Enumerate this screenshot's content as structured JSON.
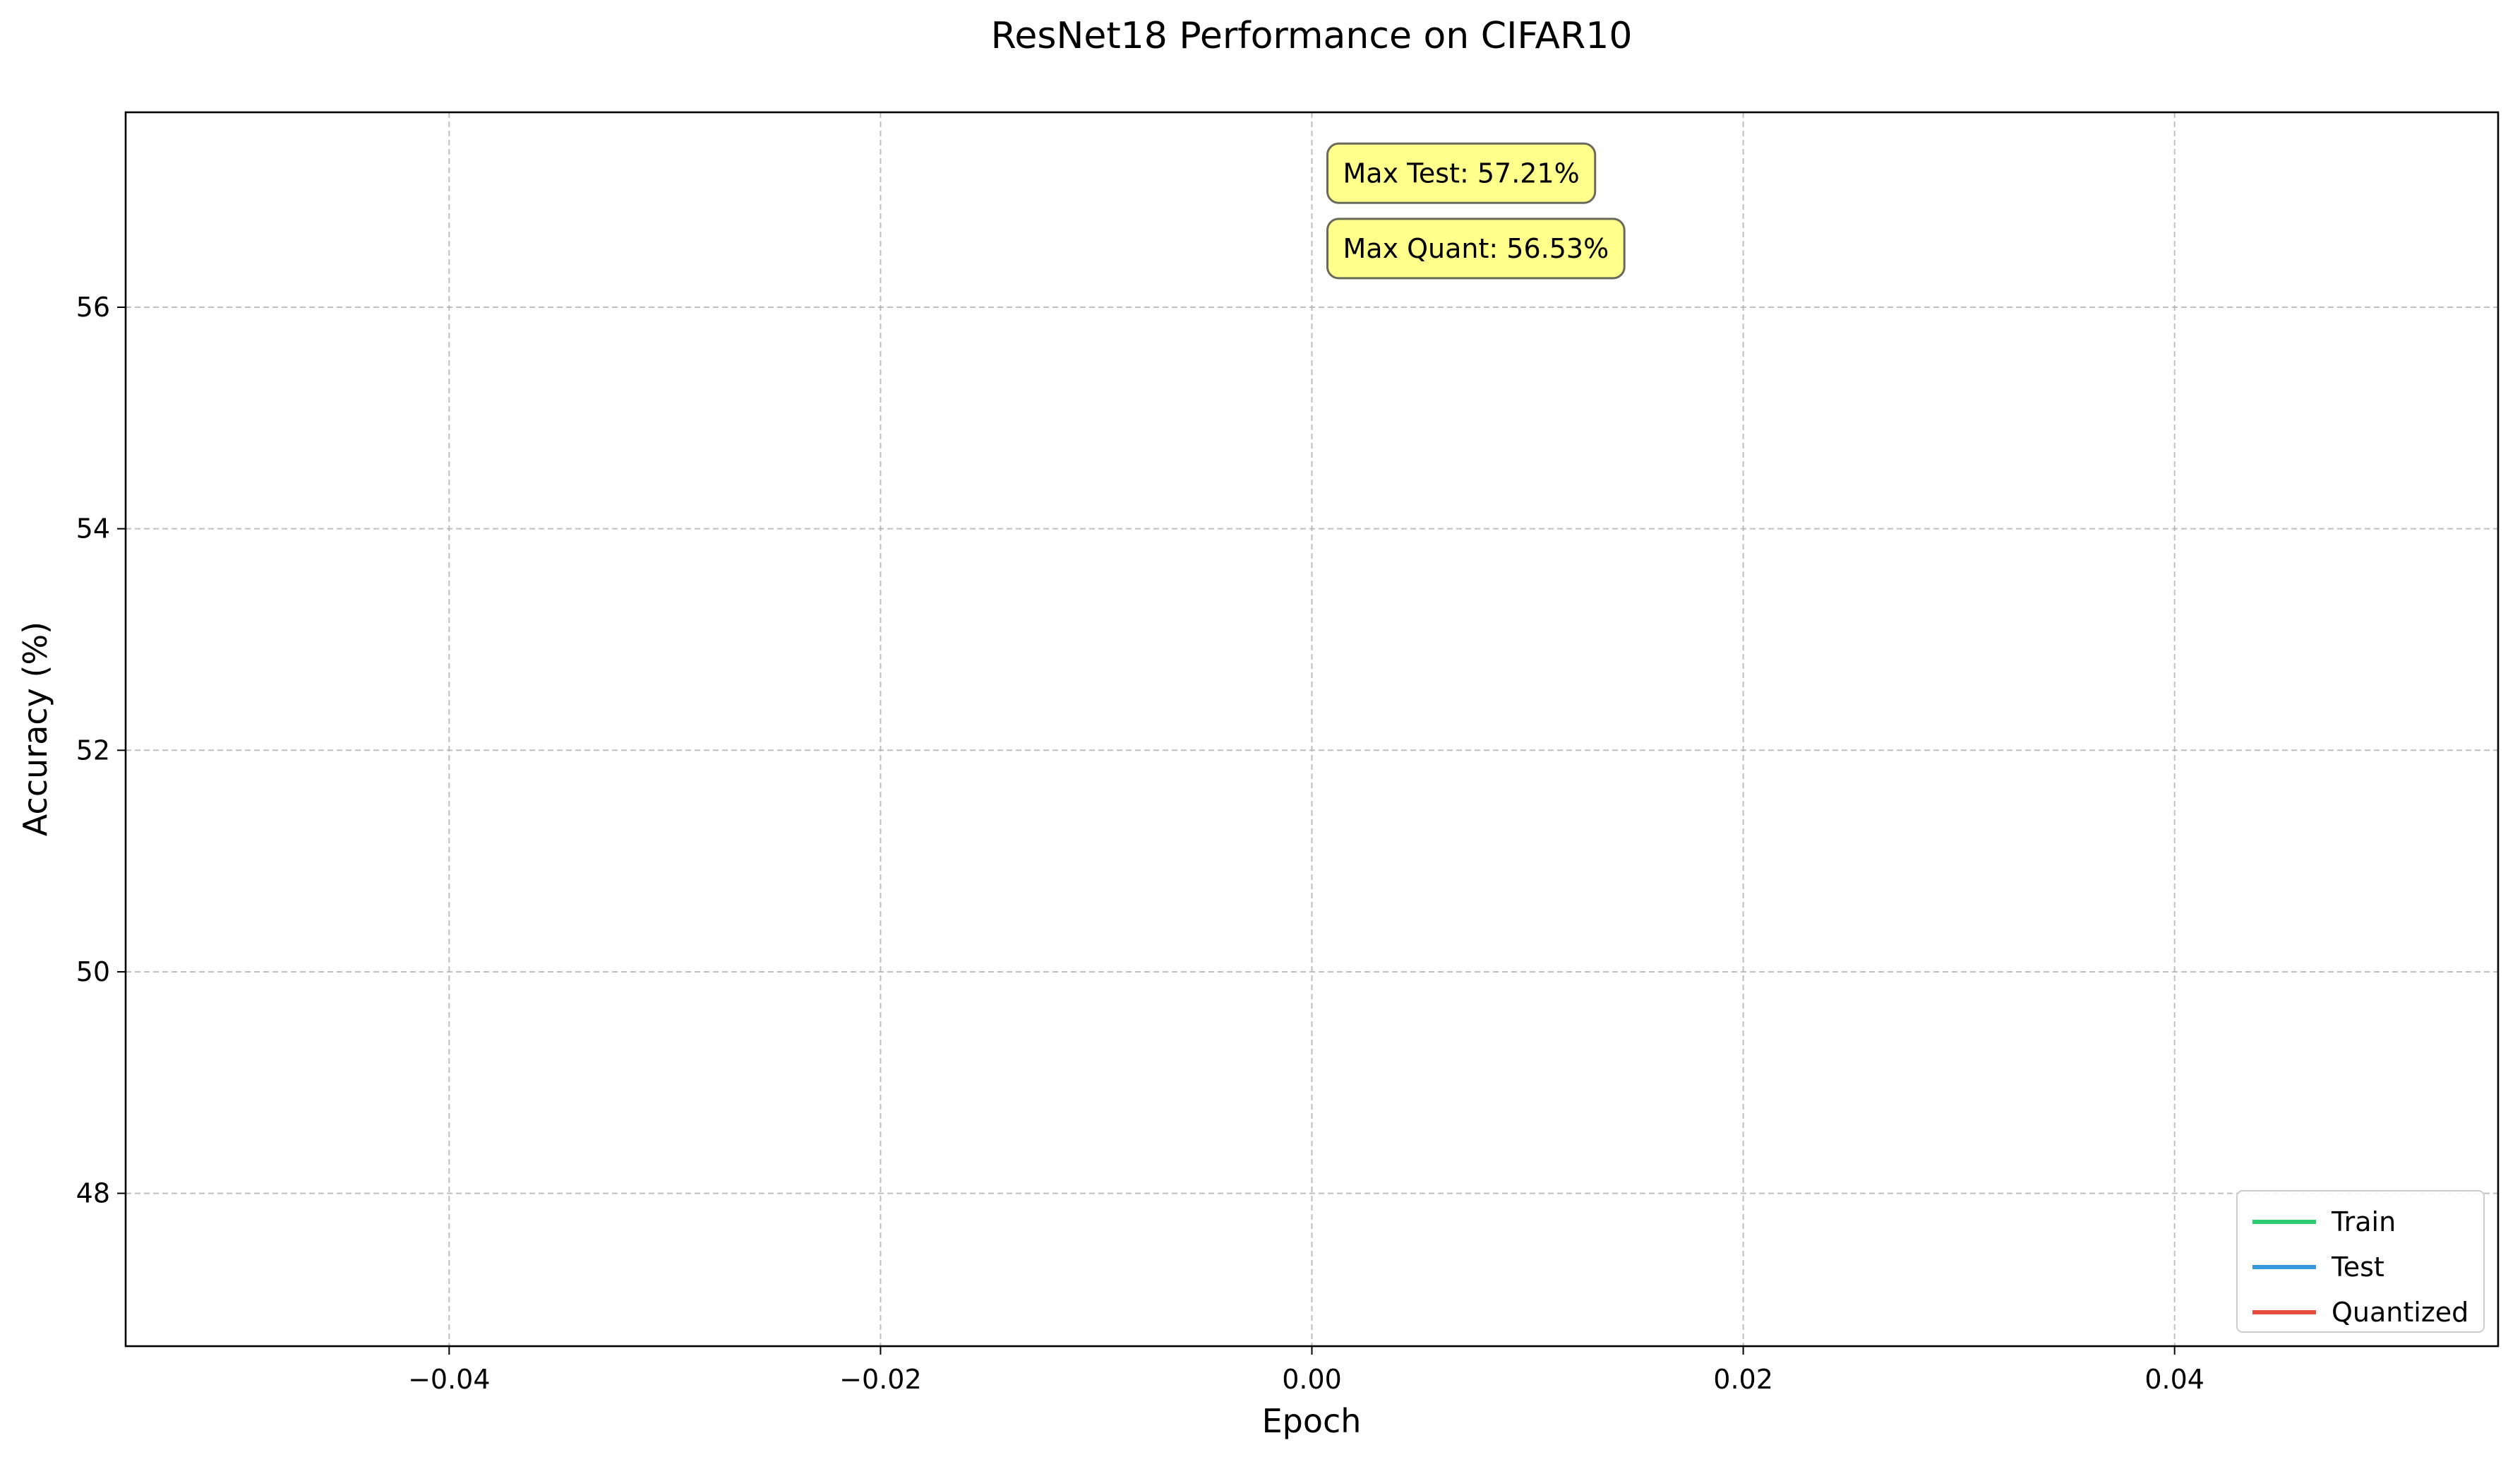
{
  "chart_data": {
    "type": "line",
    "title": "ResNet18 Performance on CIFAR10",
    "xlabel": "Epoch",
    "ylabel": "Accuracy (%)",
    "xlim": [
      -0.055,
      0.055
    ],
    "ylim": [
      46.62,
      57.76
    ],
    "xticks": [
      -0.04,
      -0.02,
      0.0,
      0.02,
      0.04
    ],
    "xtick_labels": [
      "−0.04",
      "−0.02",
      "0.00",
      "0.02",
      "0.04"
    ],
    "yticks": [
      48,
      50,
      52,
      54,
      56
    ],
    "ytick_labels": [
      "48",
      "50",
      "52",
      "54",
      "56"
    ],
    "grid": true,
    "legend_position": "lower-right",
    "series": [
      {
        "name": "Train",
        "color": "#2ecc71",
        "x": [
          0
        ],
        "y": [
          null
        ]
      },
      {
        "name": "Test",
        "color": "#3498db",
        "x": [
          0
        ],
        "y": [
          57.21
        ]
      },
      {
        "name": "Quantized",
        "color": "#e74c3c",
        "x": [
          0
        ],
        "y": [
          56.53
        ]
      }
    ],
    "annotations": [
      {
        "text": "Max Test: 57.21%",
        "x": 0.0,
        "y": 57.21,
        "background": "#ffff80"
      },
      {
        "text": "Max Quant: 56.53%",
        "x": 0.0,
        "y": 56.53,
        "background": "#ffff80"
      }
    ]
  }
}
